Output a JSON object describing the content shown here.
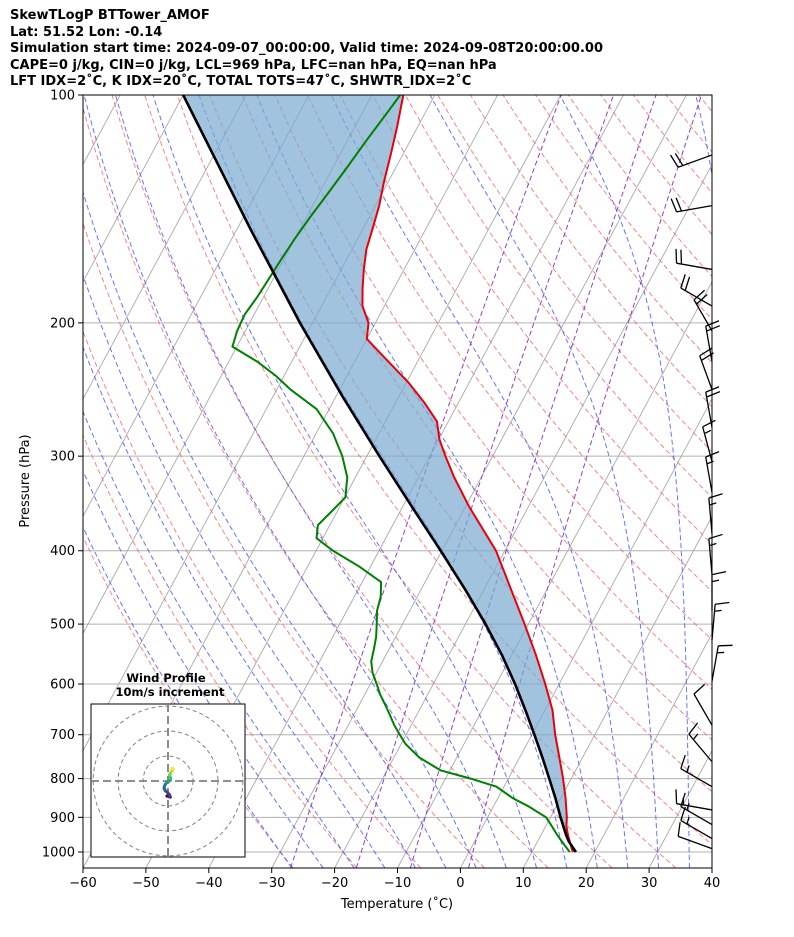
{
  "header": {
    "line1": "SkewTLogP BTTower_AMOF",
    "line2": "Lat: 51.52   Lon: -0.14",
    "line3": "Simulation start time: 2024-09-07_00:00:00, Valid time: 2024-09-08T20:00:00.00",
    "line4": "CAPE=0 j/kg, CIN=0 j/kg, LCL=969 hPa, LFC=nan hPa, EQ=nan hPa",
    "line5": "LFT IDX=2˚C, K IDX=20˚C, TOTAL TOTS=47˚C, SHWTR_IDX=2˚C"
  },
  "chart_data": {
    "type": "skewt",
    "xlabel": "Temperature (˚C)",
    "ylabel": "Pressure (hPa)",
    "xlim": [
      -60,
      40
    ],
    "ylim": [
      1050,
      100
    ],
    "log_y": true,
    "grid": true,
    "x_ticks": [
      -60,
      -50,
      -40,
      -30,
      -20,
      -10,
      0,
      10,
      20,
      30,
      40
    ],
    "y_ticks": [
      100,
      200,
      300,
      400,
      500,
      600,
      700,
      800,
      900,
      1000
    ],
    "colors": {
      "temperature": "#e8000b",
      "dewpoint": "#008000",
      "parcel": "#000000",
      "cin_fill": "#7aa9d0",
      "dry_adiabats": "#f07070",
      "moist_adiabats": "#4a5aff",
      "mixing_ratio": "#9040c0",
      "isotherms": "#a9a9a9"
    },
    "temperature_profile": {
      "pressure": [
        1000,
        975,
        950,
        925,
        900,
        850,
        800,
        750,
        700,
        650,
        600,
        550,
        500,
        450,
        400,
        350,
        320,
        300,
        285,
        270,
        255,
        240,
        220,
        210,
        200,
        190,
        180,
        170,
        160,
        150,
        140,
        130,
        120,
        110,
        100
      ],
      "temperature": [
        16.5,
        15.4,
        14.3,
        13.3,
        12.6,
        10.8,
        8.7,
        6.3,
        3.7,
        1.2,
        -2.2,
        -6.1,
        -10.6,
        -15.7,
        -21.4,
        -29.4,
        -34.3,
        -37.5,
        -39.9,
        -41.8,
        -45.4,
        -49.6,
        -56.4,
        -60.0,
        -61.1,
        -63.5,
        -65.0,
        -66.4,
        -67.7,
        -68.5,
        -69.4,
        -70.7,
        -71.9,
        -73.3,
        -75.0
      ]
    },
    "dewpoint_profile": {
      "pressure": [
        1000,
        975,
        950,
        925,
        900,
        870,
        850,
        820,
        800,
        780,
        750,
        720,
        700,
        680,
        660,
        640,
        620,
        600,
        580,
        560,
        540,
        520,
        500,
        480,
        460,
        440,
        420,
        400,
        385,
        370,
        355,
        340,
        320,
        300,
        280,
        260,
        245,
        235,
        225,
        215,
        205,
        195,
        185,
        175,
        165,
        155,
        145,
        135,
        125,
        115,
        105,
        100
      ],
      "dewpoint": [
        16.0,
        14.3,
        12.6,
        11.0,
        9.3,
        5.5,
        2.5,
        -1.2,
        -6.0,
        -11.5,
        -16.0,
        -19.3,
        -21.0,
        -22.7,
        -24.2,
        -25.8,
        -27.5,
        -29.0,
        -30.6,
        -31.8,
        -32.4,
        -33.1,
        -34.1,
        -35.2,
        -35.8,
        -37.0,
        -41.7,
        -47.3,
        -51.0,
        -51.9,
        -50.9,
        -49.9,
        -51.3,
        -53.9,
        -57.3,
        -62.0,
        -67.8,
        -71.3,
        -75.5,
        -80.7,
        -81.3,
        -81.5,
        -81.0,
        -80.7,
        -80.4,
        -80.0,
        -79.4,
        -78.6,
        -77.8,
        -77.0,
        -76.0,
        -75.5
      ]
    },
    "parcel_profile": {
      "pressure": [
        1000,
        969,
        950,
        900,
        850,
        800,
        750,
        700,
        650,
        600,
        550,
        500,
        450,
        400,
        350,
        300,
        250,
        200,
        150,
        100
      ],
      "temperature": [
        17.0,
        15.0,
        14.0,
        11.6,
        9.2,
        6.5,
        3.6,
        0.4,
        -3.1,
        -7.0,
        -11.5,
        -16.8,
        -23.0,
        -30.2,
        -38.5,
        -48.0,
        -59.0,
        -72.0,
        -88.0,
        -110.0
      ]
    },
    "wind_barbs": {
      "pressure": [
        120,
        140,
        170,
        190,
        205,
        225,
        245,
        275,
        305,
        335,
        380,
        430,
        480,
        525,
        595,
        680,
        760,
        820,
        880,
        920,
        960,
        990
      ],
      "speed_kt": [
        20,
        20,
        20,
        20,
        20,
        20,
        20,
        20,
        15,
        15,
        15,
        15,
        15,
        15,
        15,
        10,
        15,
        15,
        15,
        15,
        15,
        10
      ],
      "direction_deg": [
        250,
        260,
        280,
        300,
        330,
        350,
        340,
        350,
        345,
        350,
        355,
        355,
        0,
        5,
        10,
        330,
        320,
        300,
        280,
        300,
        300,
        290
      ]
    },
    "hodograph": {
      "title": "Wind Profile",
      "subtitle": "10m/s increment",
      "rings_ms": [
        10,
        20,
        30
      ],
      "u_ms": [
        -0.5,
        -0.8,
        0.5,
        1.8,
        1.2,
        -0.5,
        -2.2,
        -3.0,
        -2.8,
        -2.0,
        -0.8,
        0.8,
        2.0,
        2.2,
        1.6,
        1.2,
        1.8,
        2.8,
        3.8,
        4.0,
        3.2
      ],
      "v_ms": [
        -11.5,
        -11.8,
        -12.2,
        -12.6,
        -10.8,
        -8.8,
        -7.5,
        -5.8,
        -4.0,
        -2.5,
        -1.2,
        -0.2,
        0.8,
        2.0,
        3.2,
        4.6,
        6.0,
        7.5,
        8.8,
        9.5,
        10.0
      ]
    }
  }
}
